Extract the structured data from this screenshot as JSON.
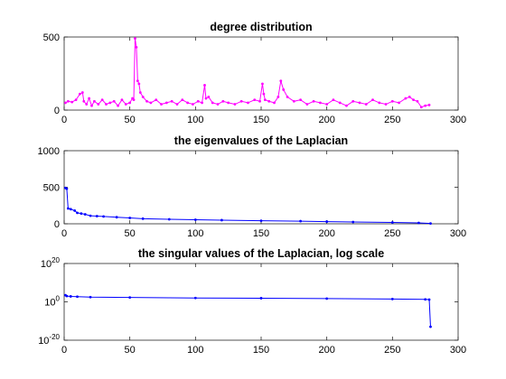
{
  "chart_data": [
    {
      "type": "line",
      "title": "degree distribution",
      "color": "#ff00ff",
      "x": [
        1,
        3,
        6,
        9,
        12,
        14,
        15,
        17,
        19,
        21,
        23,
        26,
        29,
        32,
        35,
        38,
        41,
        44,
        47,
        50,
        52,
        53,
        54,
        55,
        56,
        57,
        58,
        60,
        63,
        66,
        70,
        74,
        78,
        82,
        86,
        90,
        94,
        98,
        102,
        105,
        107,
        108,
        110,
        113,
        117,
        121,
        125,
        130,
        135,
        140,
        145,
        149,
        151,
        152,
        153,
        156,
        160,
        163,
        165,
        167,
        170,
        175,
        180,
        185,
        190,
        195,
        200,
        205,
        210,
        215,
        220,
        225,
        230,
        235,
        240,
        245,
        250,
        255,
        260,
        263,
        266,
        269,
        272,
        275,
        278
      ],
      "values": [
        50,
        60,
        55,
        70,
        110,
        120,
        60,
        40,
        80,
        30,
        60,
        40,
        70,
        40,
        50,
        60,
        30,
        70,
        40,
        50,
        80,
        70,
        490,
        430,
        200,
        180,
        120,
        90,
        60,
        50,
        70,
        40,
        50,
        60,
        40,
        70,
        50,
        40,
        60,
        50,
        170,
        80,
        90,
        50,
        40,
        60,
        50,
        40,
        60,
        50,
        70,
        60,
        180,
        110,
        70,
        60,
        50,
        90,
        200,
        140,
        90,
        60,
        70,
        40,
        60,
        50,
        40,
        70,
        50,
        30,
        60,
        50,
        40,
        70,
        50,
        40,
        60,
        50,
        80,
        90,
        70,
        60,
        20,
        30,
        35
      ],
      "xlim": [
        0,
        300
      ],
      "xticks": [
        0,
        50,
        100,
        150,
        200,
        250,
        300
      ],
      "ylim": [
        0,
        500
      ],
      "yticks": [
        0,
        500
      ]
    },
    {
      "type": "line",
      "title": "the eigenvalues of the Laplacian",
      "color": "#0000ff",
      "x": [
        1,
        2,
        3,
        5,
        8,
        10,
        13,
        16,
        20,
        25,
        30,
        40,
        50,
        60,
        80,
        100,
        120,
        150,
        180,
        200,
        220,
        250,
        270,
        279
      ],
      "values": [
        490,
        480,
        210,
        200,
        180,
        150,
        140,
        130,
        110,
        105,
        100,
        90,
        80,
        70,
        62,
        55,
        50,
        42,
        36,
        30,
        25,
        18,
        12,
        5
      ],
      "xlim": [
        0,
        300
      ],
      "xticks": [
        0,
        50,
        100,
        150,
        200,
        250,
        300
      ],
      "ylim": [
        0,
        1000
      ],
      "yticks": [
        0,
        500,
        1000
      ]
    },
    {
      "type": "line",
      "title": "the singular values of the Laplacian, log scale",
      "color": "#0000ff",
      "log_y": true,
      "x": [
        1,
        2,
        5,
        10,
        20,
        50,
        100,
        150,
        200,
        250,
        275,
        278,
        279
      ],
      "values": [
        3000,
        1000,
        700,
        500,
        300,
        200,
        100,
        80,
        50,
        30,
        20,
        15,
        1e-13
      ],
      "xlim": [
        0,
        300
      ],
      "xticks": [
        0,
        50,
        100,
        150,
        200,
        250,
        300
      ],
      "ylim": [
        1e-20,
        1e+20
      ],
      "yticks": [
        {
          "value": 1e-20,
          "label": "10^-20"
        },
        {
          "value": 1,
          "label": "10^0"
        },
        {
          "value": 1e+20,
          "label": "10^20"
        }
      ]
    }
  ]
}
